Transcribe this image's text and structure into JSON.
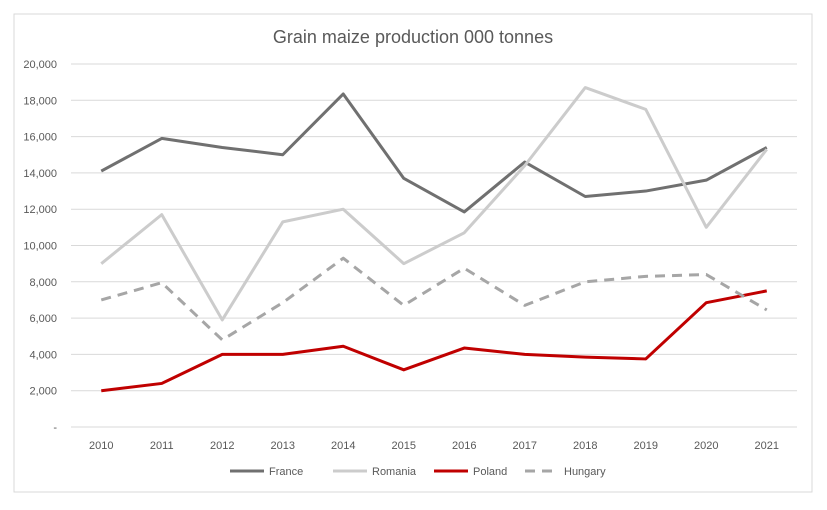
{
  "chart_data": {
    "type": "line",
    "title": "Grain maize production 000 tonnes",
    "xlabel": "",
    "ylabel": "",
    "ylim": [
      0,
      20000
    ],
    "yticks": [
      0,
      2000,
      4000,
      6000,
      8000,
      10000,
      12000,
      14000,
      16000,
      18000,
      20000
    ],
    "ytick_labels": [
      "-",
      "2,000",
      "4,000",
      "6,000",
      "8,000",
      "10,000",
      "12,000",
      "14,000",
      "16,000",
      "18,000",
      "20,000"
    ],
    "grid": true,
    "legend_position": "bottom",
    "categories": [
      "2010",
      "2011",
      "2012",
      "2013",
      "2014",
      "2015",
      "2016",
      "2017",
      "2018",
      "2019",
      "2020",
      "2021"
    ],
    "series": [
      {
        "name": "France",
        "color": "#707070",
        "dash": false,
        "values": [
          14100,
          15900,
          15400,
          15000,
          18350,
          13700,
          11850,
          14600,
          12700,
          13000,
          13600,
          15400
        ]
      },
      {
        "name": "Romania",
        "color": "#cccccc",
        "dash": false,
        "values": [
          9000,
          11700,
          5900,
          11300,
          12000,
          9000,
          10700,
          14400,
          18700,
          17500,
          11000,
          15300
        ]
      },
      {
        "name": "Poland",
        "color": "#c00000",
        "dash": false,
        "values": [
          2000,
          2400,
          4000,
          4000,
          4450,
          3150,
          4350,
          4000,
          3850,
          3750,
          6850,
          7500
        ]
      },
      {
        "name": "Hungary",
        "color": "#a6a6a6",
        "dash": true,
        "values": [
          7000,
          7950,
          4800,
          6850,
          9300,
          6700,
          8750,
          6700,
          8000,
          8300,
          8400,
          6450
        ]
      }
    ]
  }
}
